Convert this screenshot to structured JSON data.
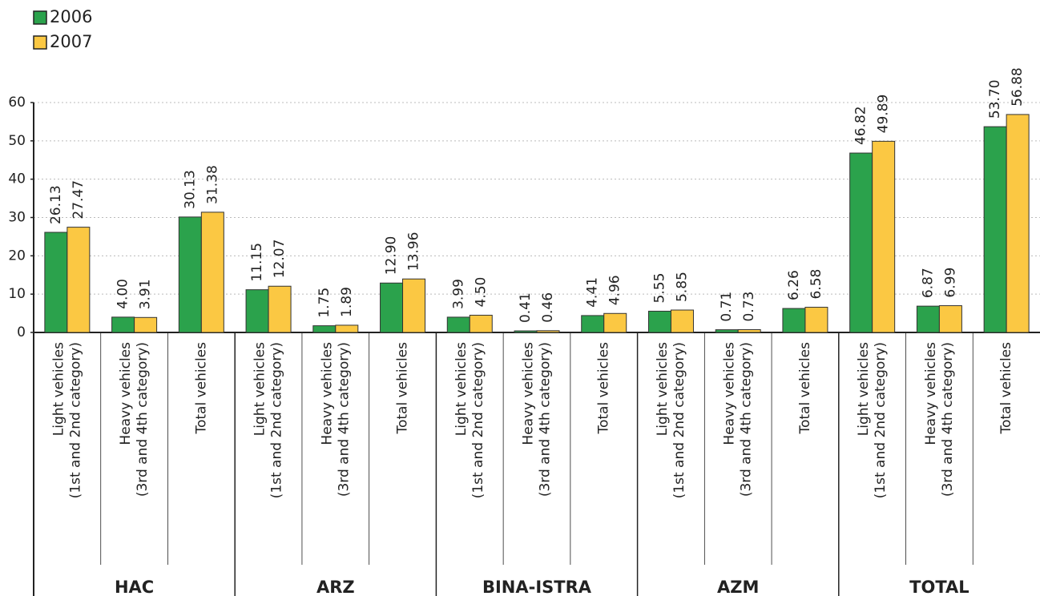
{
  "chart_data": {
    "type": "bar",
    "groups": [
      "HAC",
      "ARZ",
      "BINA-ISTRA",
      "AZM",
      "TOTAL"
    ],
    "categories": [
      [
        "Light vehicles",
        "(1st and 2nd category)"
      ],
      [
        "Heavy vehicles",
        "(3rd and 4th category)"
      ],
      [
        "Total vehicles"
      ],
      [
        "Light vehicles",
        "(1st and 2nd category)"
      ],
      [
        "Heavy vehicles",
        "(3rd and 4th category)"
      ],
      [
        "Total vehicles"
      ],
      [
        "Light vehicles",
        "(1st and 2nd category)"
      ],
      [
        "Heavy vehicles",
        "(3rd and 4th category)"
      ],
      [
        "Total vehicles"
      ],
      [
        "Light vehicles",
        "(1st and 2nd category)"
      ],
      [
        "Heavy vehicles",
        "(3rd and 4th category)"
      ],
      [
        "Total vehicles"
      ],
      [
        "Light vehicles",
        "(1st and 2nd category)"
      ],
      [
        "Heavy vehicles",
        "(3rd and 4th category)"
      ],
      [
        "Total vehicles"
      ]
    ],
    "series": [
      {
        "name": "2006",
        "color": "#2ba24c",
        "values": [
          26.13,
          4.0,
          30.13,
          11.15,
          1.75,
          12.9,
          3.99,
          0.41,
          4.41,
          5.55,
          0.71,
          6.26,
          46.82,
          6.87,
          53.7
        ],
        "value_labels": [
          "26.13",
          "4.00",
          "30.13",
          "11.15",
          "1.75",
          "12.90",
          "3.99",
          "0.41",
          "4.41",
          "5.55",
          "0.71",
          "6.26",
          "46.82",
          "6.87",
          "53.70"
        ]
      },
      {
        "name": "2007",
        "color": "#fbc843",
        "values": [
          27.47,
          3.91,
          31.38,
          12.07,
          1.89,
          13.96,
          4.5,
          0.46,
          4.96,
          5.85,
          0.73,
          6.58,
          49.89,
          6.99,
          56.88
        ],
        "value_labels": [
          "27.47",
          "3.91",
          "31.38",
          "12.07",
          "1.89",
          "13.96",
          "4.50",
          "0.46",
          "4.96",
          "5.85",
          "0.73",
          "6.58",
          "49.89",
          "6.99",
          "56.88"
        ]
      }
    ],
    "ylim": [
      0,
      60
    ],
    "yticks": [
      0,
      10,
      20,
      30,
      40,
      50,
      60
    ],
    "grid": true
  }
}
